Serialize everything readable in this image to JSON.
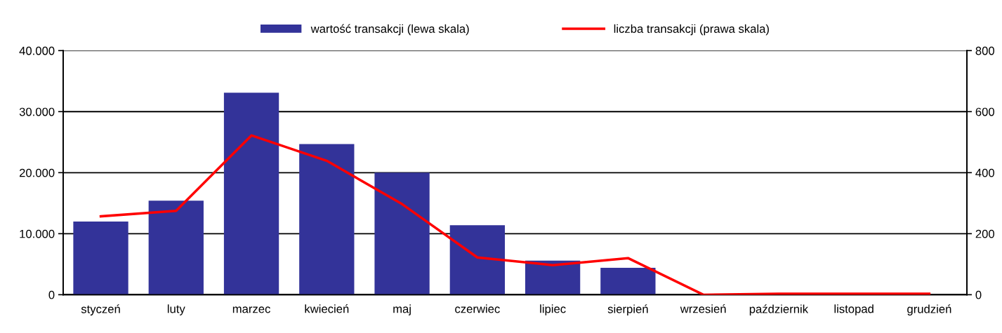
{
  "chart_data": {
    "type": "bar",
    "categories": [
      "styczeń",
      "luty",
      "marzec",
      "kwiecień",
      "maj",
      "czerwiec",
      "lipiec",
      "sierpień",
      "wrzesień",
      "październik",
      "listopad",
      "grudzień"
    ],
    "series": [
      {
        "name": "wartość transakcji (lewa skala)",
        "color": "#333399",
        "values": [
          12000,
          15400,
          33100,
          24700,
          20000,
          11400,
          5600,
          4400,
          0,
          0,
          0,
          0
        ]
      },
      {
        "name": "liczba transakcji (prawa skala)",
        "type": "line",
        "axis": "y2",
        "color": "#ff0000",
        "values": [
          257,
          275,
          522,
          439,
          297,
          122,
          97,
          120,
          0,
          3,
          3,
          3
        ]
      }
    ],
    "ylim": [
      0,
      40000
    ],
    "yticks": [
      {
        "value": 0,
        "label": "0"
      },
      {
        "value": 10000,
        "label": "10.000"
      },
      {
        "value": 20000,
        "label": "20.000"
      },
      {
        "value": 30000,
        "label": "30.000"
      },
      {
        "value": 40000,
        "label": "40.000"
      }
    ],
    "y2lim": [
      0,
      800
    ],
    "y2ticks": [
      0,
      200,
      400,
      600,
      800
    ],
    "grid": "y",
    "legend": "top",
    "marker": "none",
    "line_style": "solid"
  }
}
